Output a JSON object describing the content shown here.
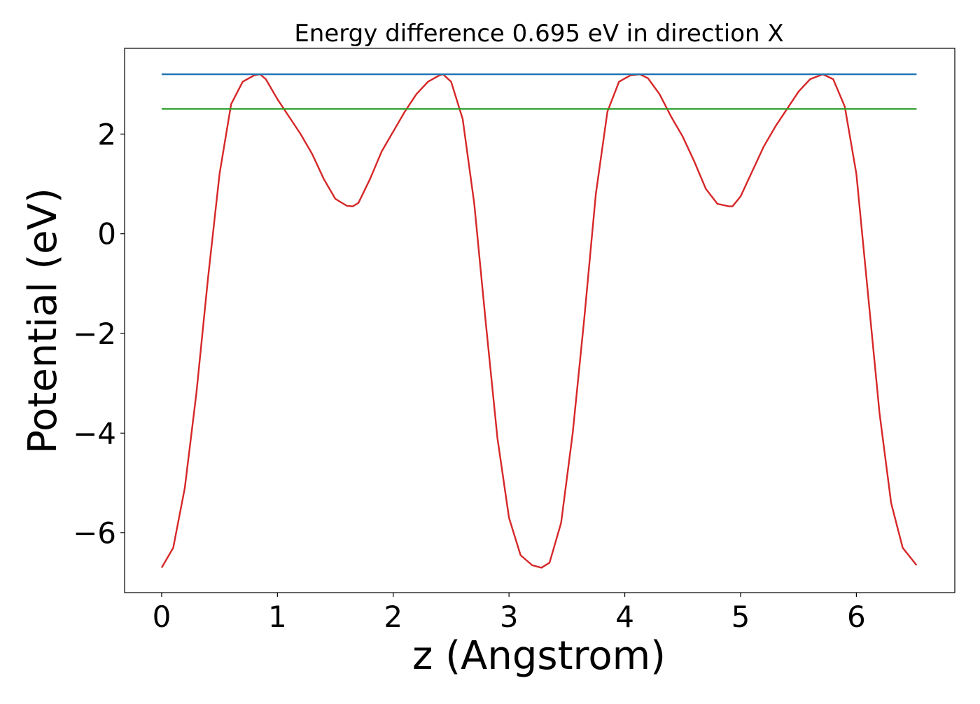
{
  "chart_data": {
    "type": "line",
    "title": "Energy difference 0.695 eV in direction X",
    "xlabel": "z (Angstrom)",
    "ylabel": "Potential (eV)",
    "xlim": [
      -0.32,
      6.85
    ],
    "ylim": [
      -7.2,
      3.72
    ],
    "xticks": [
      0,
      1,
      2,
      3,
      4,
      5,
      6
    ],
    "xtick_labels": [
      "0",
      "1",
      "2",
      "3",
      "4",
      "5",
      "6"
    ],
    "yticks": [
      -6,
      -4,
      -2,
      0,
      2
    ],
    "ytick_labels": [
      "−6",
      "−4",
      "−2",
      "0",
      "2"
    ],
    "grid": false,
    "legend": "none",
    "series": [
      {
        "color": "#d62728",
        "x": [
          0.0,
          0.1,
          0.2,
          0.3,
          0.4,
          0.5,
          0.6,
          0.7,
          0.8,
          0.85,
          0.9,
          1.0,
          1.1,
          1.2,
          1.3,
          1.4,
          1.5,
          1.6,
          1.65,
          1.7,
          1.8,
          1.9,
          2.0,
          2.1,
          2.2,
          2.3,
          2.4,
          2.43,
          2.5,
          2.6,
          2.7,
          2.8,
          2.9,
          3.0,
          3.1,
          3.2,
          3.28,
          3.35,
          3.45,
          3.55,
          3.65,
          3.75,
          3.85,
          3.95,
          4.05,
          4.13,
          4.2,
          4.3,
          4.4,
          4.5,
          4.6,
          4.7,
          4.8,
          4.9,
          4.93,
          5.0,
          5.1,
          5.2,
          5.3,
          5.4,
          5.5,
          5.6,
          5.71,
          5.8,
          5.9,
          6.0,
          6.1,
          6.2,
          6.3,
          6.4,
          6.52
        ],
        "y": [
          -6.7,
          -6.3,
          -5.1,
          -3.2,
          -0.9,
          1.2,
          2.6,
          3.05,
          3.18,
          3.2,
          3.1,
          2.7,
          2.35,
          2.0,
          1.6,
          1.1,
          0.7,
          0.56,
          0.55,
          0.62,
          1.1,
          1.65,
          2.05,
          2.45,
          2.8,
          3.05,
          3.18,
          3.2,
          3.05,
          2.3,
          0.6,
          -1.8,
          -4.1,
          -5.7,
          -6.45,
          -6.65,
          -6.7,
          -6.6,
          -5.8,
          -4.0,
          -1.7,
          0.8,
          2.45,
          3.05,
          3.18,
          3.2,
          3.12,
          2.8,
          2.35,
          1.95,
          1.45,
          0.9,
          0.6,
          0.55,
          0.55,
          0.75,
          1.25,
          1.75,
          2.15,
          2.5,
          2.85,
          3.1,
          3.2,
          3.1,
          2.55,
          1.2,
          -1.2,
          -3.6,
          -5.4,
          -6.3,
          -6.65
        ]
      },
      {
        "color": "#1f77b4",
        "x": [
          0.0,
          6.52
        ],
        "y": [
          3.2,
          3.2
        ]
      },
      {
        "color": "#2ca02c",
        "x": [
          0.0,
          6.52
        ],
        "y": [
          2.505,
          2.505
        ]
      }
    ]
  }
}
